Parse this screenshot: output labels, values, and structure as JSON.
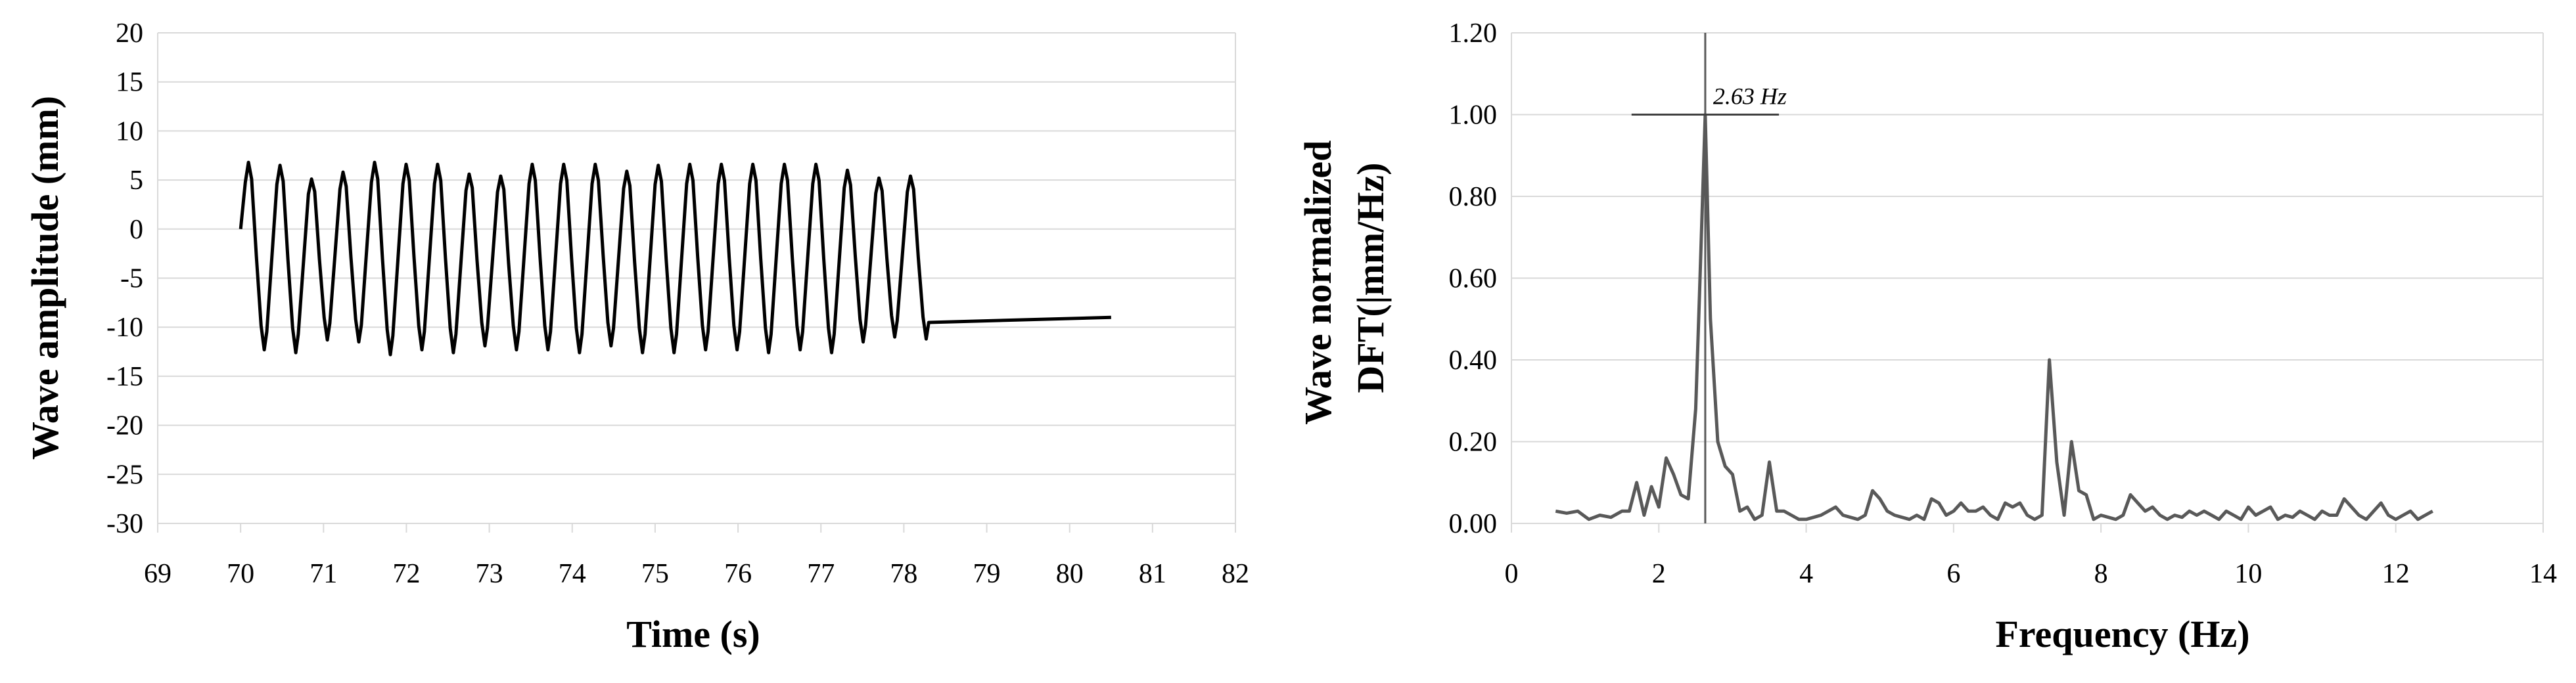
{
  "chart_data": [
    {
      "type": "line",
      "title": "",
      "xlabel": "Time (s)",
      "ylabel": "Wave amplitude (mm)",
      "xlim": [
        69,
        82
      ],
      "ylim": [
        -30,
        20
      ],
      "xticks": [
        "69",
        "70",
        "71",
        "72",
        "73",
        "74",
        "75",
        "76",
        "77",
        "78",
        "79",
        "80",
        "81",
        "82"
      ],
      "yticks": [
        "20",
        "15",
        "10",
        "5",
        "0",
        "-5",
        "-10",
        "-15",
        "-20",
        "-25",
        "-30"
      ],
      "grid": "horizontal",
      "legend": "none",
      "series_color": "#000000",
      "series": [
        {
          "signal": {
            "start_time": 70.0,
            "end_time": 80.5,
            "frequency_hz": 2.63,
            "first_crest": 6.8,
            "last_value": -9.0,
            "crests": [
              6.8,
              6.5,
              5.1,
              5.8,
              6.8,
              6.6,
              6.6,
              5.6,
              5.4,
              6.6,
              6.6,
              6.6,
              5.9,
              6.5,
              6.6,
              6.6,
              6.6,
              6.6,
              6.6,
              6.0,
              5.2,
              5.4
            ],
            "troughs": [
              -12.3,
              -12.6,
              -11.3,
              -11.5,
              -12.8,
              -12.3,
              -12.6,
              -11.9,
              -12.3,
              -12.3,
              -12.6,
              -11.9,
              -12.6,
              -12.6,
              -12.3,
              -12.3,
              -12.6,
              -12.3,
              -12.6,
              -11.5,
              -11.0,
              -11.2
            ]
          }
        }
      ]
    },
    {
      "type": "line",
      "title": "",
      "xlabel": "Frequency (Hz)",
      "ylabel": [
        "Wave normalized",
        "DFT(|mm/Hz)"
      ],
      "xlim": [
        0,
        14
      ],
      "ylim": [
        0,
        1.2
      ],
      "xticks": [
        "0",
        "2",
        "4",
        "6",
        "8",
        "10",
        "12",
        "14"
      ],
      "yticks": [
        "1.20",
        "1.00",
        "0.80",
        "0.60",
        "0.40",
        "0.20",
        "0.00"
      ],
      "grid": "horizontal",
      "legend": "none",
      "series_color": "#595959",
      "series": [
        {
          "x": [
            0.6,
            0.75,
            0.9,
            1.05,
            1.2,
            1.35,
            1.5,
            1.6,
            1.7,
            1.8,
            1.9,
            2.0,
            2.1,
            2.2,
            2.3,
            2.4,
            2.5,
            2.55,
            2.63,
            2.7,
            2.8,
            2.9,
            3.0,
            3.1,
            3.2,
            3.3,
            3.4,
            3.5,
            3.6,
            3.7,
            3.8,
            3.9,
            4.0,
            4.1,
            4.2,
            4.3,
            4.4,
            4.5,
            4.6,
            4.7,
            4.8,
            4.9,
            5.0,
            5.1,
            5.2,
            5.3,
            5.4,
            5.5,
            5.6,
            5.7,
            5.8,
            5.9,
            6.0,
            6.1,
            6.2,
            6.3,
            6.4,
            6.5,
            6.6,
            6.7,
            6.8,
            6.9,
            7.0,
            7.1,
            7.2,
            7.3,
            7.4,
            7.5,
            7.6,
            7.7,
            7.8,
            7.9,
            8.0,
            8.1,
            8.2,
            8.3,
            8.4,
            8.5,
            8.6,
            8.7,
            8.8,
            8.9,
            9.0,
            9.1,
            9.2,
            9.3,
            9.4,
            9.5,
            9.6,
            9.7,
            9.8,
            9.9,
            10.0,
            10.1,
            10.2,
            10.3,
            10.4,
            10.5,
            10.6,
            10.7,
            10.8,
            10.9,
            11.0,
            11.1,
            11.2,
            11.3,
            11.4,
            11.5,
            11.6,
            11.7,
            11.8,
            11.9,
            12.0,
            12.1,
            12.2,
            12.3,
            12.4,
            12.5
          ],
          "y": [
            0.03,
            0.025,
            0.03,
            0.01,
            0.02,
            0.015,
            0.03,
            0.03,
            0.1,
            0.02,
            0.09,
            0.04,
            0.16,
            0.12,
            0.07,
            0.06,
            0.28,
            0.55,
            1.0,
            0.5,
            0.2,
            0.14,
            0.12,
            0.03,
            0.04,
            0.01,
            0.02,
            0.15,
            0.03,
            0.03,
            0.02,
            0.01,
            0.01,
            0.015,
            0.02,
            0.03,
            0.04,
            0.02,
            0.015,
            0.01,
            0.02,
            0.08,
            0.06,
            0.03,
            0.02,
            0.015,
            0.01,
            0.02,
            0.01,
            0.06,
            0.05,
            0.02,
            0.03,
            0.05,
            0.03,
            0.03,
            0.04,
            0.02,
            0.01,
            0.05,
            0.04,
            0.05,
            0.02,
            0.01,
            0.02,
            0.4,
            0.15,
            0.02,
            0.2,
            0.08,
            0.07,
            0.01,
            0.02,
            0.015,
            0.01,
            0.02,
            0.07,
            0.05,
            0.03,
            0.04,
            0.02,
            0.01,
            0.02,
            0.015,
            0.03,
            0.02,
            0.03,
            0.02,
            0.01,
            0.03,
            0.02,
            0.01,
            0.04,
            0.02,
            0.03,
            0.04,
            0.01,
            0.02,
            0.015,
            0.03,
            0.02,
            0.01,
            0.03,
            0.02,
            0.02,
            0.06,
            0.04,
            0.02,
            0.01,
            0.03,
            0.05,
            0.02,
            0.01,
            0.02,
            0.03,
            0.01,
            0.02,
            0.03
          ]
        }
      ],
      "annotations": [
        {
          "text": "2.63 Hz",
          "x": 2.63,
          "y": 1.0
        }
      ]
    }
  ]
}
